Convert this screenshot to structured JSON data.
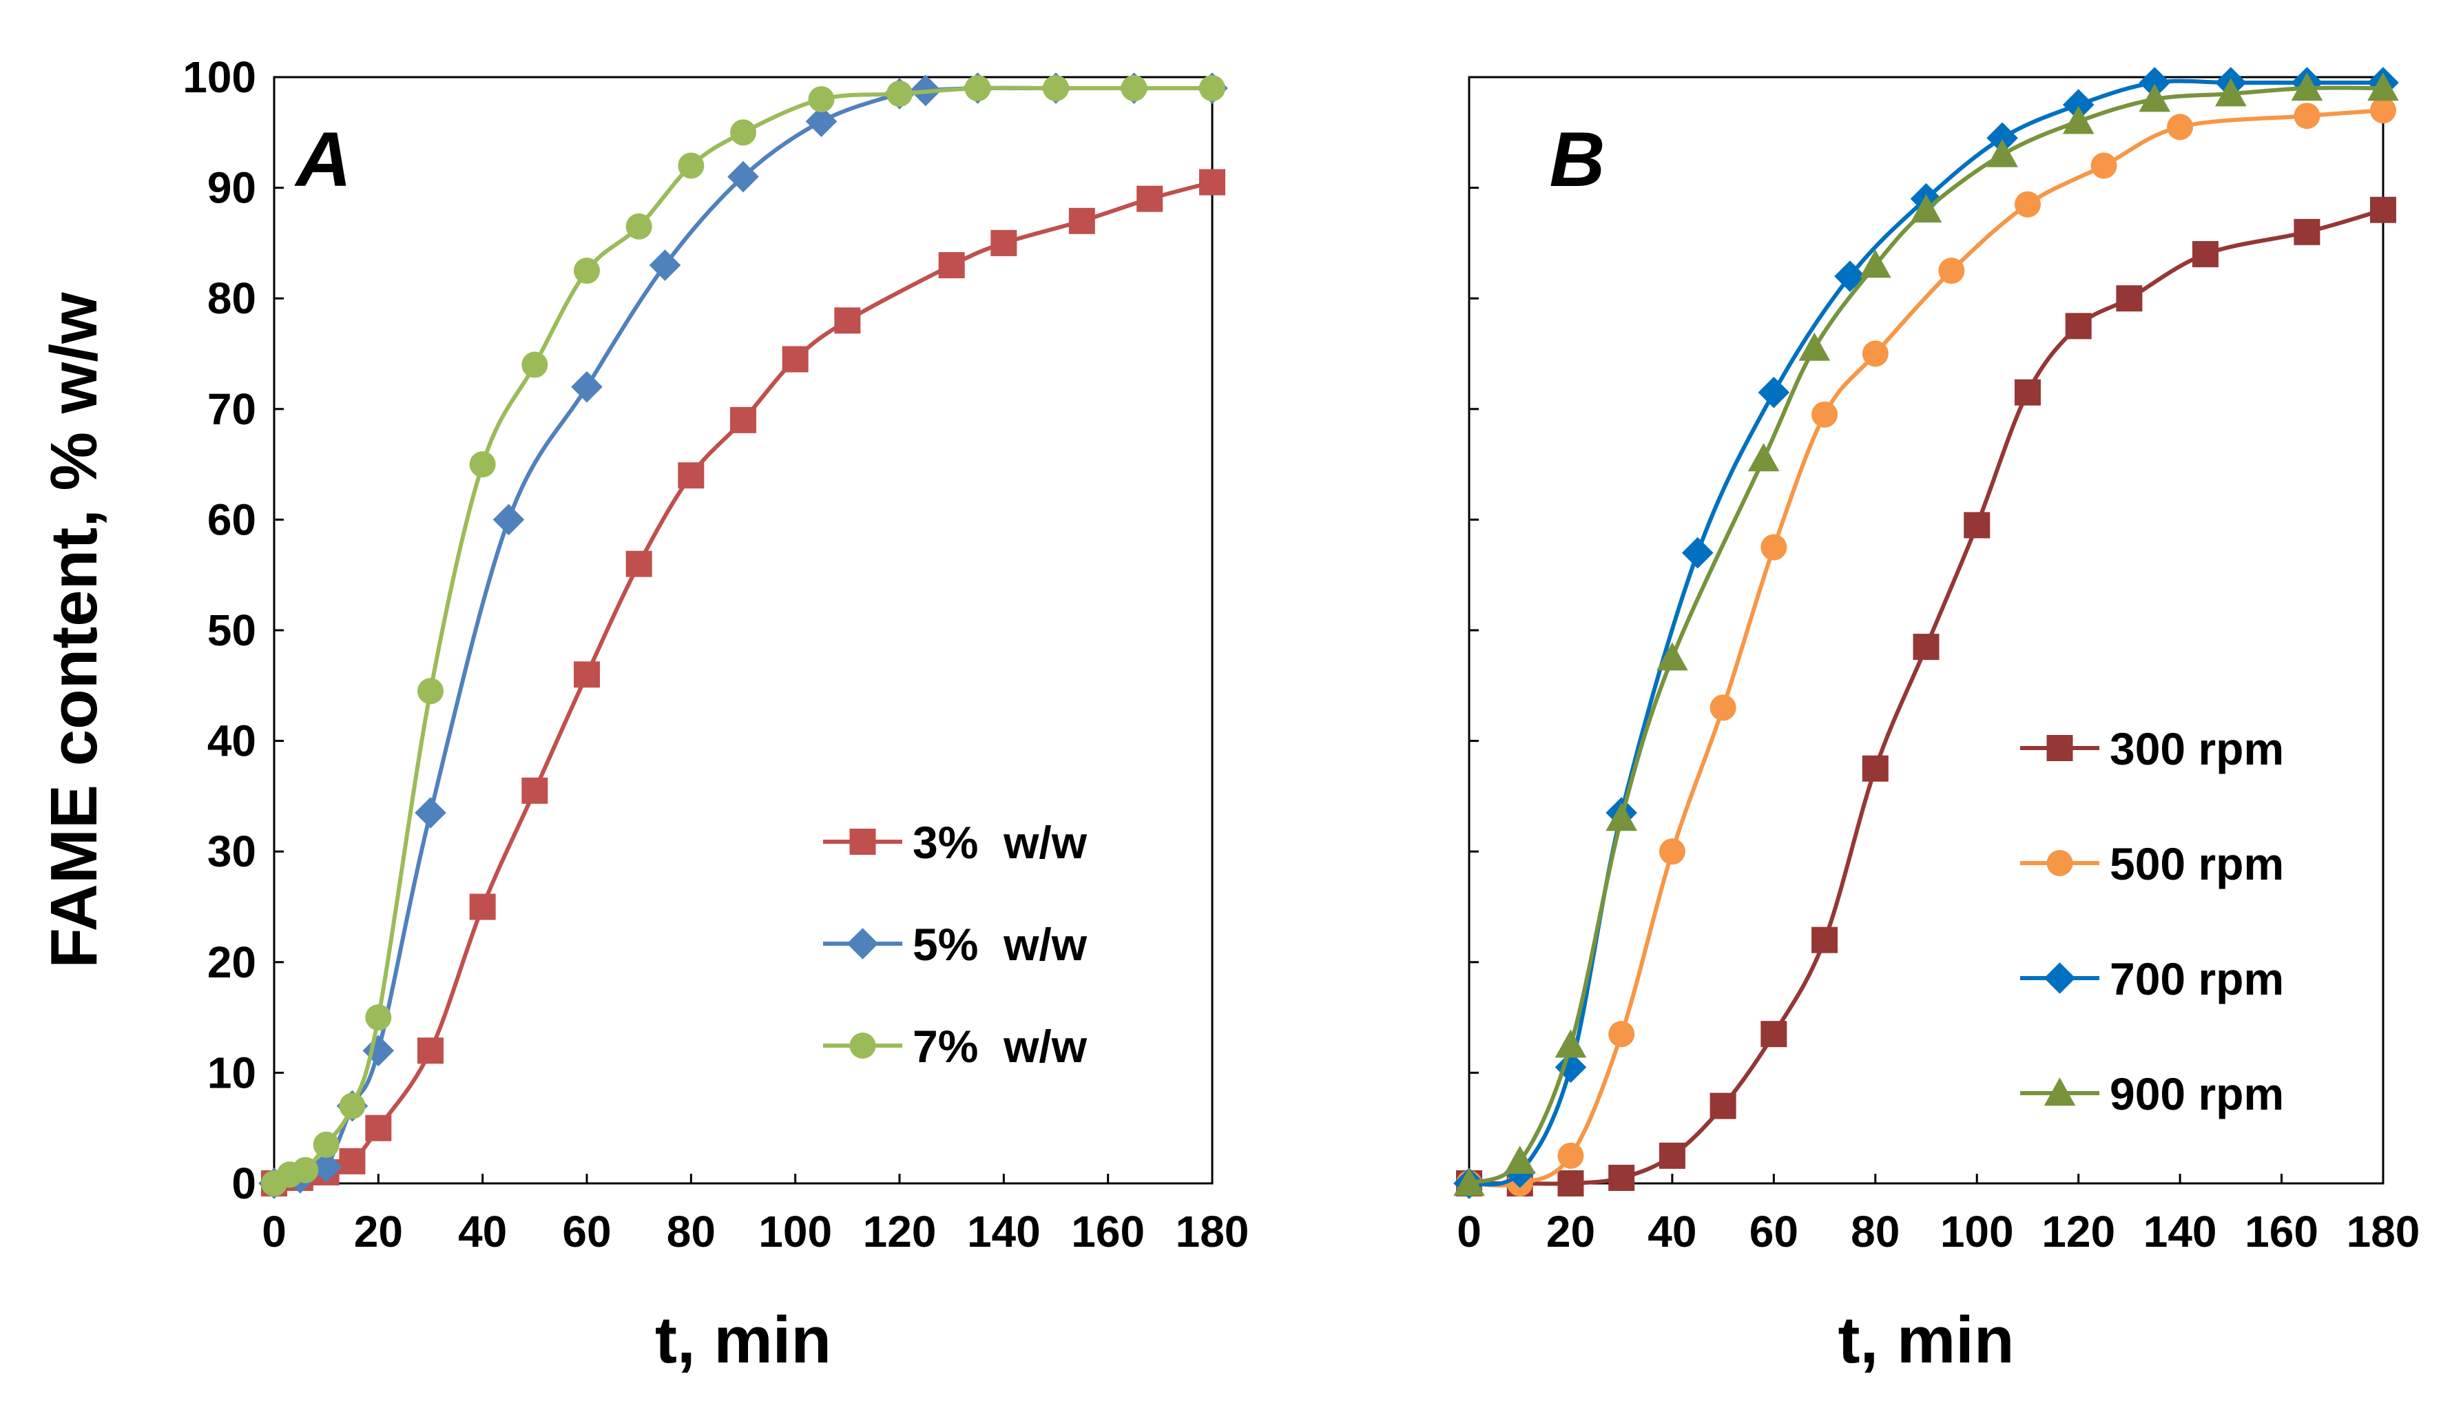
{
  "chart_data": [
    {
      "type": "line",
      "panel_label": "A",
      "title": "",
      "xlabel": "t, min",
      "ylabel": "FAME content, % w/w",
      "xlim": [
        0,
        180
      ],
      "ylim": [
        0,
        100
      ],
      "xticks": [
        0,
        20,
        40,
        60,
        80,
        100,
        120,
        140,
        160,
        180
      ],
      "yticks": [
        0,
        10,
        20,
        30,
        40,
        50,
        60,
        70,
        80,
        90,
        100
      ],
      "show_ytick_labels": true,
      "grid": false,
      "legend_position": "bottom-right",
      "series": [
        {
          "name": "3%  w/w",
          "color": "#C0504D",
          "marker": "square",
          "x": [
            0,
            5,
            10,
            15,
            20,
            30,
            40,
            50,
            60,
            70,
            80,
            90,
            100,
            110,
            130,
            140,
            155,
            168,
            180
          ],
          "y": [
            0,
            0.5,
            1,
            2,
            5,
            12,
            25,
            35.5,
            46,
            56,
            64,
            69,
            74.5,
            78,
            83,
            85,
            87,
            89,
            90.5
          ]
        },
        {
          "name": "5%  w/w",
          "color": "#4F81BD",
          "marker": "diamond",
          "x": [
            0,
            5,
            10,
            15,
            20,
            30,
            45,
            60,
            75,
            90,
            105,
            120,
            125,
            135,
            150,
            165,
            180
          ],
          "y": [
            0,
            0.5,
            1.5,
            7,
            12,
            33.5,
            60,
            72,
            83,
            91,
            96,
            98.5,
            98.8,
            99,
            99,
            99,
            99
          ]
        },
        {
          "name": "7%  w/w",
          "color": "#9BBB59",
          "marker": "circle",
          "x": [
            0,
            3,
            6,
            10,
            15,
            20,
            30,
            40,
            50,
            60,
            70,
            80,
            90,
            105,
            120,
            135,
            150,
            165,
            180
          ],
          "y": [
            0,
            0.8,
            1.2,
            3.5,
            7,
            15,
            44.5,
            65,
            74,
            82.5,
            86.5,
            92,
            95,
            98,
            98.5,
            99,
            99,
            99,
            99
          ]
        }
      ]
    },
    {
      "type": "line",
      "panel_label": "B",
      "title": "",
      "xlabel": "t, min",
      "ylabel": "",
      "xlim": [
        0,
        180
      ],
      "ylim": [
        0,
        100
      ],
      "xticks": [
        0,
        20,
        40,
        60,
        80,
        100,
        120,
        140,
        160,
        180
      ],
      "yticks": [
        0,
        10,
        20,
        30,
        40,
        50,
        60,
        70,
        80,
        90,
        100
      ],
      "show_ytick_labels": false,
      "grid": false,
      "legend_position": "center-right",
      "series": [
        {
          "name": "300 rpm",
          "color": "#953735",
          "marker": "square",
          "x": [
            0,
            10,
            20,
            30,
            40,
            50,
            60,
            70,
            80,
            90,
            100,
            110,
            120,
            130,
            145,
            165,
            180
          ],
          "y": [
            0,
            0,
            0,
            0.5,
            2.5,
            7,
            13.5,
            22,
            37.5,
            48.5,
            59.5,
            71.5,
            77.5,
            80,
            84,
            86,
            88
          ]
        },
        {
          "name": "500 rpm",
          "color": "#F79646",
          "marker": "circle",
          "x": [
            0,
            10,
            20,
            30,
            40,
            50,
            60,
            70,
            80,
            95,
            110,
            125,
            140,
            165,
            180
          ],
          "y": [
            0,
            0,
            2.5,
            13.5,
            30,
            43,
            57.5,
            69.5,
            75,
            82.5,
            88.5,
            92,
            95.5,
            96.5,
            97
          ]
        },
        {
          "name": "700 rpm",
          "color": "#0070C0",
          "marker": "diamond",
          "x": [
            0,
            10,
            20,
            30,
            45,
            60,
            75,
            90,
            105,
            120,
            135,
            150,
            165,
            180
          ],
          "y": [
            0,
            1,
            10.5,
            33.5,
            57,
            71.5,
            82,
            89,
            94.5,
            97.5,
            99.5,
            99.5,
            99.5,
            99.5
          ]
        },
        {
          "name": "900 rpm",
          "color": "#77933C",
          "marker": "triangle",
          "x": [
            0,
            10,
            20,
            30,
            40,
            58,
            68,
            80,
            90,
            105,
            120,
            135,
            150,
            165,
            180
          ],
          "y": [
            0,
            2,
            12.5,
            33,
            47.5,
            65.5,
            75.5,
            83,
            88,
            93,
            96,
            98,
            98.5,
            99,
            99
          ]
        }
      ]
    }
  ]
}
